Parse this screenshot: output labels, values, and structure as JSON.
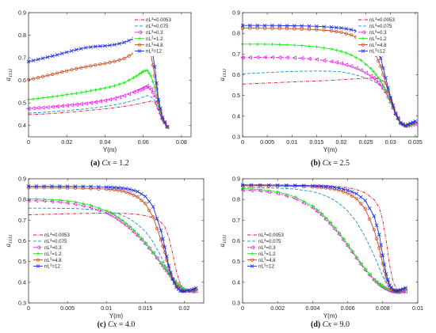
{
  "chart_data": [
    {
      "type": "line",
      "panel": "a",
      "caption": {
        "letter": "(a)",
        "var": "Cx",
        "value": " = 1.2"
      },
      "xlabel": "Y(m)",
      "ylabel": "a",
      "ylabel_sub": "1111",
      "xlim": [
        0,
        0.085
      ],
      "ylim": [
        0.35,
        0.9
      ],
      "xticks": [
        "0",
        "0.02",
        "0.04",
        "0.06",
        "0.08"
      ],
      "xtick_values": [
        0,
        0.02,
        0.04,
        0.06,
        0.08
      ],
      "yticks": [
        "0.4",
        "0.5",
        "0.6",
        "0.7",
        "0.8",
        "0.9"
      ],
      "ytick_values": [
        0.4,
        0.5,
        0.6,
        0.7,
        0.8,
        0.9
      ],
      "legend_position": "top-right",
      "x": [
        0,
        0.005,
        0.01,
        0.015,
        0.02,
        0.025,
        0.03,
        0.035,
        0.04,
        0.045,
        0.05,
        0.055,
        0.058,
        0.06,
        0.062,
        0.064,
        0.066,
        0.068,
        0.07,
        0.0725
      ],
      "series": [
        {
          "name": "nL³=0.0053",
          "values": [
            0.448,
            0.45,
            0.452,
            0.455,
            0.458,
            0.462,
            0.466,
            0.47,
            0.474,
            0.479,
            0.485,
            0.492,
            0.497,
            0.501,
            0.505,
            0.508,
            0.502,
            0.465,
            0.42,
            0.39
          ]
        },
        {
          "name": "nL³=0.075",
          "values": [
            0.455,
            0.457,
            0.46,
            0.463,
            0.466,
            0.47,
            0.474,
            0.479,
            0.485,
            0.492,
            0.5,
            0.512,
            0.52,
            0.527,
            0.533,
            0.528,
            0.51,
            0.47,
            0.425,
            0.392
          ]
        },
        {
          "name": "nL³=0.3",
          "values": [
            0.475,
            0.478,
            0.481,
            0.485,
            0.489,
            0.493,
            0.498,
            0.504,
            0.511,
            0.52,
            0.532,
            0.548,
            0.558,
            0.566,
            0.575,
            0.56,
            0.53,
            0.478,
            0.428,
            0.392
          ]
        },
        {
          "name": "nL³=1.2",
          "values": [
            0.515,
            0.52,
            0.525,
            0.53,
            0.537,
            0.543,
            0.55,
            0.558,
            0.566,
            0.576,
            0.59,
            0.612,
            0.628,
            0.64,
            0.645,
            0.62,
            0.57,
            0.49,
            0.43,
            0.393
          ]
        },
        {
          "name": "nL³=4.8",
          "values": [
            0.603,
            0.612,
            0.622,
            0.632,
            0.642,
            0.652,
            0.66,
            0.668,
            0.675,
            0.684,
            0.697,
            0.72,
            0.735,
            0.745,
            0.748,
            0.715,
            0.62,
            0.505,
            0.433,
            0.394
          ]
        },
        {
          "name": "nL³=12",
          "values": [
            0.683,
            0.693,
            0.703,
            0.713,
            0.725,
            0.736,
            0.745,
            0.75,
            0.753,
            0.758,
            0.768,
            0.785,
            0.797,
            0.803,
            0.804,
            0.77,
            0.66,
            0.515,
            0.436,
            0.395
          ]
        }
      ]
    },
    {
      "type": "line",
      "panel": "b",
      "caption": {
        "letter": "(b)",
        "var": "Cx",
        "value": " = 2.5"
      },
      "xlabel": "Y(m)",
      "ylabel": "a",
      "ylabel_sub": "1111",
      "xlim": [
        0,
        0.0355
      ],
      "ylim": [
        0.3,
        0.9
      ],
      "xticks": [
        "0",
        "0.005",
        "0.01",
        "0.015",
        "0.02",
        "0.025",
        "0.03",
        "0.035"
      ],
      "xtick_values": [
        0,
        0.005,
        0.01,
        0.015,
        0.02,
        0.025,
        0.03,
        0.035
      ],
      "yticks": [
        "0.3",
        "0.4",
        "0.5",
        "0.6",
        "0.7",
        "0.8",
        "0.9"
      ],
      "ytick_values": [
        0.3,
        0.4,
        0.5,
        0.6,
        0.7,
        0.8,
        0.9
      ],
      "legend_position": "top-right",
      "x": [
        0,
        0.003,
        0.006,
        0.009,
        0.012,
        0.015,
        0.018,
        0.02,
        0.022,
        0.024,
        0.026,
        0.027,
        0.028,
        0.029,
        0.03,
        0.031,
        0.032,
        0.033,
        0.034,
        0.035
      ],
      "series": [
        {
          "name": "nL³=0.0053",
          "values": [
            0.555,
            0.558,
            0.561,
            0.564,
            0.567,
            0.57,
            0.573,
            0.576,
            0.579,
            0.582,
            0.584,
            0.583,
            0.578,
            0.56,
            0.5,
            0.42,
            0.37,
            0.355,
            0.358,
            0.362
          ]
        },
        {
          "name": "nL³=0.075",
          "values": [
            0.605,
            0.608,
            0.612,
            0.615,
            0.617,
            0.618,
            0.617,
            0.614,
            0.605,
            0.592,
            0.575,
            0.563,
            0.545,
            0.515,
            0.47,
            0.41,
            0.368,
            0.355,
            0.358,
            0.362
          ]
        },
        {
          "name": "nL³=0.3",
          "values": [
            0.683,
            0.684,
            0.684,
            0.683,
            0.68,
            0.674,
            0.664,
            0.655,
            0.641,
            0.622,
            0.595,
            0.575,
            0.55,
            0.515,
            0.465,
            0.408,
            0.365,
            0.352,
            0.356,
            0.362
          ]
        },
        {
          "name": "nL³=1.2",
          "values": [
            0.748,
            0.748,
            0.747,
            0.745,
            0.741,
            0.735,
            0.724,
            0.713,
            0.696,
            0.67,
            0.63,
            0.602,
            0.57,
            0.525,
            0.468,
            0.408,
            0.364,
            0.352,
            0.358,
            0.365
          ]
        },
        {
          "name": "nL³=4.8",
          "values": [
            0.825,
            0.825,
            0.824,
            0.823,
            0.821,
            0.818,
            0.812,
            0.805,
            0.792,
            0.77,
            0.73,
            0.695,
            0.64,
            0.56,
            0.478,
            0.41,
            0.366,
            0.353,
            0.362,
            0.37
          ]
        },
        {
          "name": "nL³=12",
          "values": [
            0.838,
            0.838,
            0.838,
            0.837,
            0.836,
            0.834,
            0.83,
            0.826,
            0.818,
            0.804,
            0.772,
            0.74,
            0.68,
            0.585,
            0.488,
            0.414,
            0.368,
            0.354,
            0.365,
            0.375
          ]
        }
      ]
    },
    {
      "type": "line",
      "panel": "c",
      "caption": {
        "letter": "(c)",
        "var": "Cx",
        "value": " = 4.0"
      },
      "xlabel": "Y(m)",
      "ylabel": "a",
      "ylabel_sub": "1111",
      "xlim": [
        0,
        0.0225
      ],
      "ylim": [
        0.3,
        0.9
      ],
      "xticks": [
        "0",
        "0.005",
        "0.01",
        "0.015",
        "0.02"
      ],
      "xtick_values": [
        0,
        0.005,
        0.01,
        0.015,
        0.02
      ],
      "yticks": [
        "0.3",
        "0.4",
        "0.5",
        "0.6",
        "0.7",
        "0.8",
        "0.9"
      ],
      "ytick_values": [
        0.3,
        0.4,
        0.5,
        0.6,
        0.7,
        0.8,
        0.9
      ],
      "legend_position": "bottom-left",
      "x": [
        0,
        0.002,
        0.004,
        0.006,
        0.008,
        0.01,
        0.011,
        0.012,
        0.013,
        0.014,
        0.015,
        0.016,
        0.017,
        0.0175,
        0.018,
        0.0185,
        0.019,
        0.0195,
        0.02,
        0.021,
        0.0215
      ],
      "series": [
        {
          "name": "nL³=0.0053",
          "values": [
            0.726,
            0.728,
            0.73,
            0.732,
            0.733,
            0.734,
            0.734,
            0.733,
            0.731,
            0.728,
            0.722,
            0.712,
            0.69,
            0.668,
            0.62,
            0.54,
            0.45,
            0.39,
            0.36,
            0.356,
            0.36
          ]
        },
        {
          "name": "nL³=0.075",
          "values": [
            0.758,
            0.758,
            0.757,
            0.756,
            0.752,
            0.744,
            0.736,
            0.724,
            0.706,
            0.68,
            0.645,
            0.595,
            0.525,
            0.485,
            0.445,
            0.41,
            0.38,
            0.362,
            0.352,
            0.35,
            0.355
          ]
        },
        {
          "name": "nL³=0.3",
          "values": [
            0.795,
            0.793,
            0.788,
            0.778,
            0.762,
            0.735,
            0.716,
            0.69,
            0.66,
            0.625,
            0.585,
            0.54,
            0.49,
            0.465,
            0.44,
            0.415,
            0.392,
            0.375,
            0.362,
            0.355,
            0.358
          ]
        },
        {
          "name": "nL³=1.2",
          "values": [
            0.803,
            0.801,
            0.797,
            0.788,
            0.772,
            0.745,
            0.726,
            0.7,
            0.67,
            0.633,
            0.592,
            0.545,
            0.495,
            0.47,
            0.445,
            0.42,
            0.398,
            0.38,
            0.366,
            0.358,
            0.361
          ]
        },
        {
          "name": "nL³=4.8",
          "values": [
            0.857,
            0.857,
            0.856,
            0.855,
            0.853,
            0.85,
            0.847,
            0.841,
            0.83,
            0.812,
            0.78,
            0.715,
            0.605,
            0.545,
            0.47,
            0.415,
            0.38,
            0.362,
            0.358,
            0.362,
            0.366
          ]
        },
        {
          "name": "nL³=12",
          "values": [
            0.864,
            0.864,
            0.864,
            0.863,
            0.862,
            0.86,
            0.858,
            0.855,
            0.849,
            0.838,
            0.815,
            0.765,
            0.65,
            0.57,
            0.48,
            0.415,
            0.376,
            0.358,
            0.356,
            0.364,
            0.372
          ]
        }
      ]
    },
    {
      "type": "line",
      "panel": "d",
      "caption": {
        "letter": "(d)",
        "var": "Cx",
        "value": " = 9.0"
      },
      "xlabel": "Y(m)",
      "ylabel": "a",
      "ylabel_sub": "1111",
      "xlim": [
        0,
        0.01
      ],
      "ylim": [
        0.3,
        0.9
      ],
      "xticks": [
        "0",
        "0.002",
        "0.004",
        "0.006",
        "0.008",
        "0.01"
      ],
      "xtick_values": [
        0,
        0.002,
        0.004,
        0.006,
        0.008,
        0.01
      ],
      "yticks": [
        "0.3",
        "0.4",
        "0.5",
        "0.6",
        "0.7",
        "0.8",
        "0.9"
      ],
      "ytick_values": [
        0.3,
        0.4,
        0.5,
        0.6,
        0.7,
        0.8,
        0.9
      ],
      "legend_position": "bottom-left",
      "x": [
        0,
        0.001,
        0.002,
        0.003,
        0.004,
        0.0045,
        0.005,
        0.0055,
        0.006,
        0.0065,
        0.007,
        0.0075,
        0.0078,
        0.008,
        0.0082,
        0.0084,
        0.0086,
        0.0088,
        0.009,
        0.0093
      ],
      "series": [
        {
          "name": "nL³=0.0053",
          "values": [
            0.87,
            0.87,
            0.87,
            0.869,
            0.868,
            0.867,
            0.865,
            0.862,
            0.857,
            0.848,
            0.832,
            0.8,
            0.76,
            0.7,
            0.6,
            0.48,
            0.4,
            0.365,
            0.352,
            0.352
          ]
        },
        {
          "name": "nL³=0.075",
          "values": [
            0.858,
            0.857,
            0.855,
            0.85,
            0.838,
            0.826,
            0.808,
            0.782,
            0.745,
            0.692,
            0.62,
            0.53,
            0.47,
            0.43,
            0.395,
            0.37,
            0.356,
            0.35,
            0.35,
            0.352
          ]
        },
        {
          "name": "nL³=0.3",
          "values": [
            0.846,
            0.842,
            0.83,
            0.805,
            0.76,
            0.725,
            0.682,
            0.632,
            0.575,
            0.515,
            0.458,
            0.41,
            0.388,
            0.376,
            0.366,
            0.358,
            0.354,
            0.352,
            0.353,
            0.356
          ]
        },
        {
          "name": "nL³=1.2",
          "values": [
            0.852,
            0.848,
            0.837,
            0.812,
            0.768,
            0.733,
            0.69,
            0.64,
            0.583,
            0.522,
            0.465,
            0.415,
            0.392,
            0.38,
            0.37,
            0.362,
            0.357,
            0.355,
            0.356,
            0.36
          ]
        },
        {
          "name": "nL³=4.8",
          "values": [
            0.866,
            0.866,
            0.865,
            0.864,
            0.861,
            0.858,
            0.853,
            0.845,
            0.83,
            0.804,
            0.755,
            0.655,
            0.565,
            0.49,
            0.42,
            0.378,
            0.36,
            0.356,
            0.36,
            0.368
          ]
        },
        {
          "name": "nL³=12",
          "values": [
            0.87,
            0.87,
            0.869,
            0.868,
            0.866,
            0.864,
            0.861,
            0.855,
            0.845,
            0.828,
            0.795,
            0.72,
            0.63,
            0.53,
            0.44,
            0.385,
            0.363,
            0.358,
            0.363,
            0.372
          ]
        }
      ]
    }
  ],
  "styles": {
    "nL³=0.0053": {
      "color": "#e8141a",
      "dash": "4,1.5,1,1.5",
      "marker": "none"
    },
    "nL³=0.075": {
      "color": "#1a8fd6",
      "dash": "4,2",
      "marker": "none"
    },
    "nL³=0.3": {
      "color": "#e81ce8",
      "dash": "3,1.5,1,1.5",
      "marker": "triangle-left"
    },
    "nL³=1.2": {
      "color": "#19e81c",
      "dash": "",
      "marker": "plus"
    },
    "nL³=4.8": {
      "color": "#c4481a",
      "dash": "",
      "marker": "circle"
    },
    "nL³=12": {
      "color": "#1a2ee8",
      "dash": "",
      "marker": "x"
    }
  }
}
